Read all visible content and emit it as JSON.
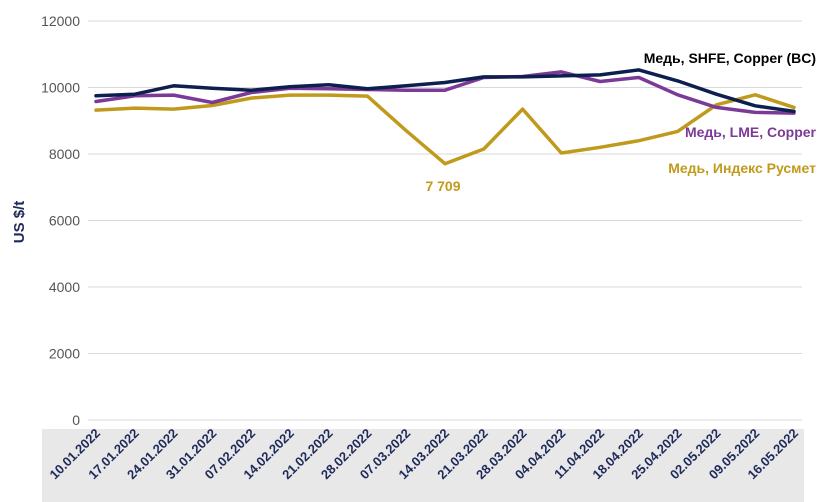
{
  "chart_data": {
    "type": "line",
    "ylabel": "US $/t",
    "xlabel": "",
    "ylim": [
      0,
      12000
    ],
    "yticks": [
      0,
      2000,
      4000,
      6000,
      8000,
      10000,
      12000
    ],
    "grid": true,
    "categories": [
      "10.01.2022",
      "17.01.2022",
      "24.01.2022",
      "31.01.2022",
      "07.02.2022",
      "14.02.2022",
      "21.02.2022",
      "28.02.2022",
      "07.03.2022",
      "14.03.2022",
      "21.03.2022",
      "28.03.2022",
      "04.04.2022",
      "11.04.2022",
      "18.04.2022",
      "25.04.2022",
      "02.05.2022",
      "09.05.2022",
      "16.05.2022"
    ],
    "series": [
      {
        "name": "Медь, SHFE, Copper (BC)",
        "color": "#0d1f4f",
        "values": [
          9750,
          9800,
          10050,
          9980,
          9920,
          10020,
          10080,
          9960,
          10050,
          10150,
          10320,
          10320,
          10350,
          10380,
          10530,
          10200,
          9800,
          9450,
          9280
        ]
      },
      {
        "name": "Медь, LME, Copper",
        "color": "#7b3a96",
        "values": [
          9580,
          9750,
          9770,
          9550,
          9850,
          9980,
          9960,
          9940,
          9920,
          9920,
          10300,
          10330,
          10470,
          10180,
          10300,
          9780,
          9400,
          9250,
          9230
        ]
      },
      {
        "name": "Медь, Индекс Русмет",
        "color": "#c09a1c",
        "values": [
          9320,
          9380,
          9350,
          9460,
          9680,
          9770,
          9770,
          9740,
          8700,
          7709,
          8150,
          9350,
          8030,
          8200,
          8400,
          8680,
          9480,
          9780,
          9400
        ]
      }
    ],
    "annotations": [
      {
        "text": "7 709",
        "series": 2,
        "index": 9
      }
    ]
  }
}
